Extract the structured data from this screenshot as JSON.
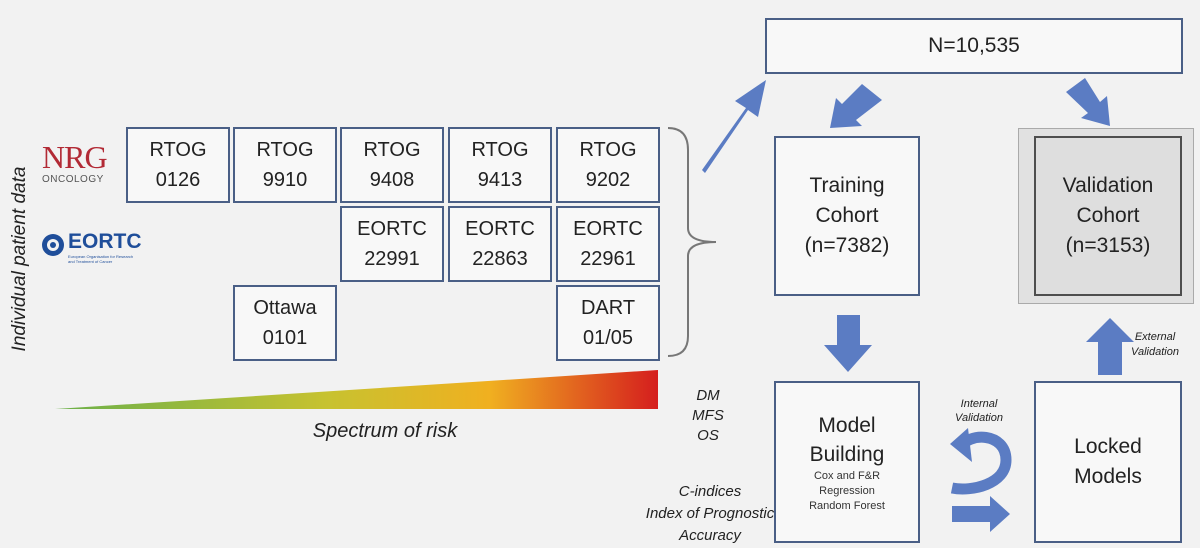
{
  "side_label": "Individual patient data",
  "logos": {
    "nrg_main": "NRG",
    "nrg_sub": "ONCOLOGY",
    "eortc": "EORTC",
    "eortc_sub1": "European Organisation for Research",
    "eortc_sub2": "and Treatment of Cancer"
  },
  "trials": {
    "rtog0126": [
      "RTOG",
      "0126"
    ],
    "rtog9910": [
      "RTOG",
      "9910"
    ],
    "rtog9408": [
      "RTOG",
      "9408"
    ],
    "rtog9413": [
      "RTOG",
      "9413"
    ],
    "rtog9202": [
      "RTOG",
      "9202"
    ],
    "eortc22991": [
      "EORTC",
      "22991"
    ],
    "eortc22863": [
      "EORTC",
      "22863"
    ],
    "eortc22961": [
      "EORTC",
      "22961"
    ],
    "ottawa0101": [
      "Ottawa",
      "0101"
    ],
    "dart0105": [
      "DART",
      "01/05"
    ]
  },
  "risk_label": "Spectrum of risk",
  "total": "N=10,535",
  "training": [
    "Training",
    "Cohort",
    "(n=7382)"
  ],
  "validation": [
    "Validation",
    "Cohort",
    "(n=3153)"
  ],
  "model_building": {
    "title": [
      "Model",
      "Building"
    ],
    "methods": [
      "Cox and F&R",
      "Regression",
      "Random Forest"
    ]
  },
  "locked": [
    "Locked",
    "Models"
  ],
  "internal_validation": [
    "Internal",
    "Validation"
  ],
  "external_validation": [
    "External",
    "Validation"
  ],
  "endpoints": [
    "DM",
    "MFS",
    "OS"
  ],
  "metrics": [
    "C-indices",
    "Index of Prognostic",
    "Accuracy"
  ],
  "colors": {
    "box_border": "#4a5f86",
    "arrow": "#5b7cc3",
    "nrg_red": "#b22a35",
    "eortc_blue": "#1f4e9a"
  }
}
